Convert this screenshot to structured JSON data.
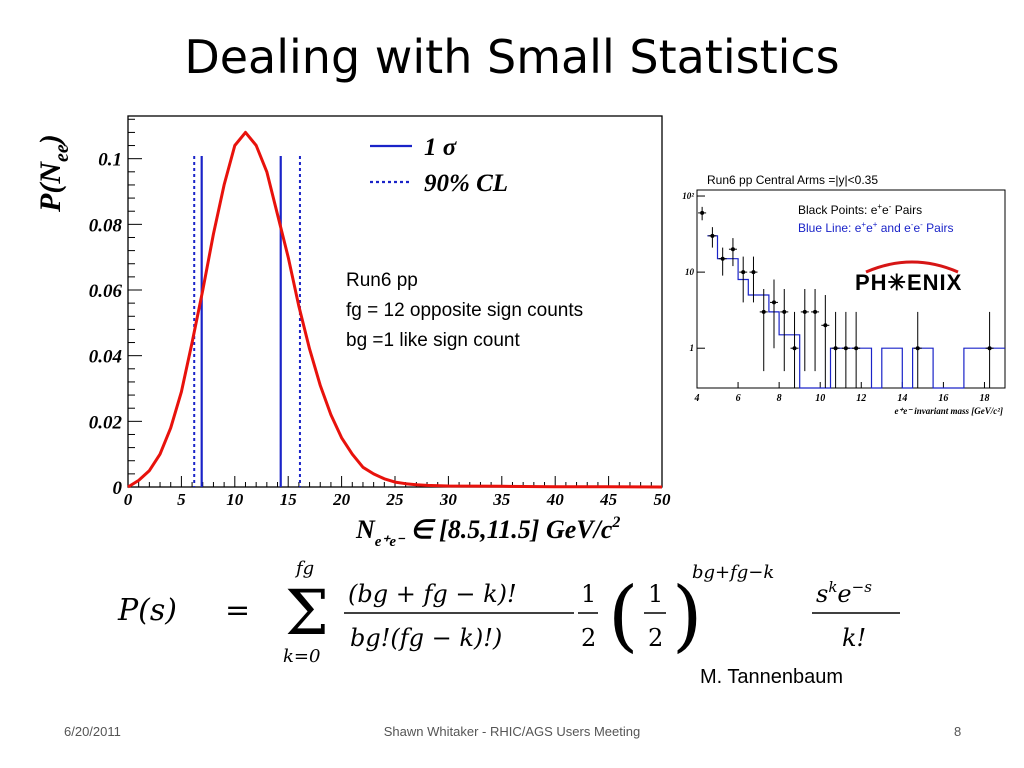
{
  "slide": {
    "title": "Dealing with Small Statistics",
    "info_lines": [
      "Run6 pp",
      "fg = 12 opposite sign counts",
      "bg =1 like sign count"
    ],
    "author": "M. Tannenbaum",
    "footer": {
      "date": "6/20/2011",
      "center": "Shawn Whitaker - RHIC/AGS Users Meeting",
      "page": "8"
    }
  },
  "formula": {
    "lhs": "P(s)",
    "eq": "=",
    "sum_top": "fg",
    "sum_bottom": "k=0",
    "frac1_num": "(bg + fg − k)!",
    "frac1_den": "bg!(fg − k)!)",
    "half_num": "1",
    "half_den": "2",
    "exponent": "bg+fg−k",
    "frac3_num": "s",
    "frac3_num_sup": "k",
    "frac3_num_e": "e",
    "frac3_num_esup": "−s",
    "frac3_den": "k!"
  },
  "colors": {
    "curve": "#e8120c",
    "sigma": "#1a23c8",
    "points": "#000000"
  },
  "chart_data": [
    {
      "type": "line",
      "title": "",
      "ylabel": "P(N",
      "ylabel_sub": "ee",
      "ylabel_close": ")",
      "xlabel_main": "N",
      "xlabel_sub": "e⁺e⁻",
      "xlabel_range": "∈ [8.5,11.5] GeV/c",
      "xlabel_sup": "2",
      "xlim": [
        0,
        50
      ],
      "ylim": [
        0,
        0.113
      ],
      "xticks": [
        "0",
        "5",
        "10",
        "15",
        "20",
        "25",
        "30",
        "35",
        "40",
        "45",
        "50"
      ],
      "yticks": [
        "0",
        "0.02",
        "0.04",
        "0.06",
        "0.08",
        "0.1"
      ],
      "curve": {
        "x": [
          0,
          1,
          2,
          3,
          4,
          5,
          6,
          7,
          8,
          9,
          10,
          11,
          12,
          13,
          14,
          15,
          16,
          17,
          18,
          19,
          20,
          21,
          22,
          23,
          24,
          25,
          26,
          27,
          28,
          30,
          35,
          40,
          45,
          50
        ],
        "y": [
          0.0,
          0.002,
          0.005,
          0.01,
          0.018,
          0.029,
          0.044,
          0.06,
          0.077,
          0.092,
          0.104,
          0.108,
          0.104,
          0.096,
          0.083,
          0.07,
          0.055,
          0.042,
          0.031,
          0.022,
          0.015,
          0.01,
          0.006,
          0.004,
          0.0025,
          0.0015,
          0.001,
          0.0007,
          0.0005,
          0.0003,
          0.0002,
          0.0001,
          0.0001,
          0.0
        ]
      },
      "sigma_lines": [
        6.9,
        14.3
      ],
      "cl90_lines": [
        6.2,
        16.1
      ],
      "legend": [
        {
          "label": "1 σ",
          "style": "solid"
        },
        {
          "label": "90% CL",
          "style": "dotted"
        }
      ]
    },
    {
      "type": "scatter",
      "title": "Run6 pp    Central Arms =|y|<0.35",
      "legend_black_prefix": "Black Points: e",
      "legend_black_sup1": "+",
      "legend_black_mid": "e",
      "legend_black_sup2": "-",
      "legend_black_suffix": "  Pairs",
      "legend_blue_prefix": "Blue Line: e",
      "legend_blue_sup1": "+",
      "legend_blue_mid": "e",
      "legend_blue_sup2": "+",
      "legend_blue_and": " and e",
      "legend_blue_sup3": "-",
      "legend_blue_e2": "e",
      "legend_blue_sup4": "-",
      "legend_blue_suffix": " Pairs",
      "logo": "PH✳ENIX",
      "xlabel": "e⁺e⁻ invariant mass  [GeV/c²]",
      "xticks": [
        "4",
        "6",
        "8",
        "10",
        "12",
        "14",
        "16",
        "18"
      ],
      "yticks": [
        "1",
        "10",
        "10²"
      ],
      "xlim": [
        4,
        19
      ],
      "ylim_log": [
        0.3,
        120
      ],
      "points": {
        "x": [
          4.25,
          4.75,
          5.25,
          5.75,
          6.25,
          6.75,
          7.25,
          7.75,
          8.25,
          8.75,
          9.25,
          9.75,
          10.25,
          10.75,
          11.25,
          11.75,
          14.75,
          18.25
        ],
        "y": [
          60,
          30,
          15,
          20,
          10,
          10,
          3,
          4,
          3,
          1,
          3,
          3,
          2,
          1,
          1,
          1,
          1,
          1
        ],
        "err_up": [
          12,
          9,
          6,
          8,
          6,
          6,
          3,
          4,
          3,
          2,
          3,
          3,
          3,
          2,
          2,
          2,
          2,
          2
        ],
        "err_down": [
          12,
          9,
          6,
          8,
          6,
          6,
          2.5,
          3,
          2.5,
          0.7,
          2.5,
          2.5,
          1.7,
          0.7,
          0.7,
          0.7,
          0.7,
          0.7
        ]
      },
      "line": {
        "edges": [
          4.5,
          5.0,
          5.5,
          6.0,
          6.5,
          7.0,
          7.5,
          8.0,
          8.5,
          9.0,
          9.5,
          10.0,
          10.5,
          11.0,
          11.5,
          12.0,
          12.5,
          13.0,
          13.5,
          14.0,
          14.5,
          15.0,
          15.5,
          16.0,
          16.5,
          17.0,
          17.5,
          18.0,
          18.5,
          19.0
        ],
        "values": [
          30,
          15,
          15,
          8,
          5,
          5,
          3,
          1.5,
          1.5,
          0.3,
          0.3,
          0.3,
          1,
          1,
          1,
          1,
          0.3,
          1,
          1,
          0.3,
          1,
          1,
          0.3,
          0.3,
          0.3,
          1,
          1,
          1,
          1,
          1
        ]
      }
    }
  ]
}
